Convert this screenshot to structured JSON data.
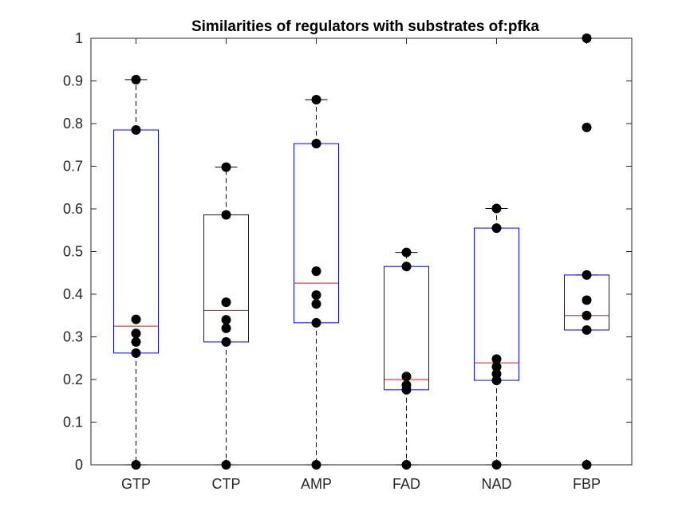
{
  "chart_data": {
    "type": "box",
    "title": "Similarities of regulators with substrates of:pfka",
    "xlabel": "",
    "ylabel": "",
    "ylim": [
      0,
      1
    ],
    "yticks": [
      0,
      0.1,
      0.2,
      0.3,
      0.4,
      0.5,
      0.6,
      0.7,
      0.8,
      0.9,
      1
    ],
    "ytick_labels": [
      "0",
      "0.1",
      "0.2",
      "0.3",
      "0.4",
      "0.5",
      "0.6",
      "0.7",
      "0.8",
      "0.9",
      "1"
    ],
    "categories": [
      "GTP",
      "CTP",
      "AMP",
      "FAD",
      "NAD",
      "FBP"
    ],
    "grid": false,
    "boxes": [
      {
        "category": "GTP",
        "whisker_low": 0,
        "q1": 0.262,
        "median": 0.325,
        "q3": 0.785,
        "whisker_high": 0.903,
        "points": [
          0,
          0.262,
          0.288,
          0.308,
          0.341,
          0.785,
          0.903
        ]
      },
      {
        "category": "CTP",
        "whisker_low": 0,
        "q1": 0.288,
        "median": 0.362,
        "q3": 0.586,
        "whisker_high": 0.698,
        "points": [
          0,
          0.288,
          0.32,
          0.34,
          0.381,
          0.586,
          0.698
        ]
      },
      {
        "category": "AMP",
        "whisker_low": 0,
        "q1": 0.333,
        "median": 0.426,
        "q3": 0.753,
        "whisker_high": 0.856,
        "points": [
          0,
          0.333,
          0.377,
          0.398,
          0.454,
          0.753,
          0.856
        ]
      },
      {
        "category": "FAD",
        "whisker_low": 0,
        "q1": 0.176,
        "median": 0.2,
        "q3": 0.465,
        "whisker_high": 0.498,
        "points": [
          0,
          0.176,
          0.187,
          0.207,
          0.465,
          0.498
        ]
      },
      {
        "category": "NAD",
        "whisker_low": 0,
        "q1": 0.198,
        "median": 0.239,
        "q3": 0.555,
        "whisker_high": 0.601,
        "points": [
          0,
          0.198,
          0.213,
          0.23,
          0.248,
          0.555,
          0.601
        ]
      },
      {
        "category": "FBP",
        "whisker_low": 0.316,
        "q1": 0.316,
        "median": 0.35,
        "q3": 0.445,
        "whisker_high": 0.445,
        "points": [
          0,
          0.316,
          0.35,
          0.386,
          0.445,
          0.791,
          1.0
        ],
        "outliers": [
          0,
          0.791,
          1.0
        ]
      }
    ],
    "colors": {
      "box": "#0000ff",
      "median": "#ff0000",
      "whisker": "#000000",
      "points": "#000000",
      "axes": "#262626"
    }
  }
}
